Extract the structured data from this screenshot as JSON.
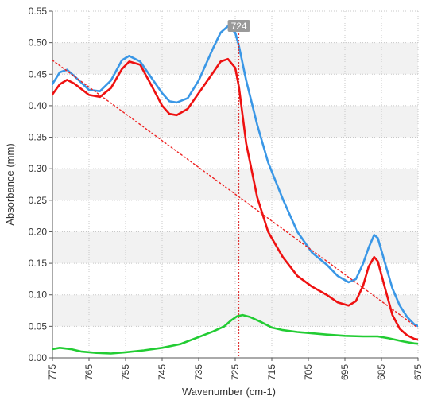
{
  "chart_data": {
    "type": "line",
    "title": "",
    "xlabel": "Wavenumber (cm-1)",
    "ylabel": "Absorbance (mm)",
    "x_axis": {
      "reversed": true,
      "range": [
        775,
        675
      ],
      "ticks": [
        "775",
        "765",
        "755",
        "745",
        "735",
        "725",
        "715",
        "705",
        "695",
        "685",
        "675"
      ]
    },
    "y_axis": {
      "range": [
        0.0,
        0.55
      ],
      "ticks": [
        "0.00",
        "0.05",
        "0.10",
        "0.15",
        "0.20",
        "0.25",
        "0.30",
        "0.35",
        "0.40",
        "0.45",
        "0.50",
        "0.55"
      ]
    },
    "grid": true,
    "banded_background": true,
    "cursor": {
      "x": 724,
      "label": "724"
    },
    "colors": {
      "blue": "#3a97e6",
      "red": "#ee1111",
      "green": "#22cc33",
      "trend": "#ee2222",
      "cursor": "#dd2222",
      "band": "#f2f2f2",
      "grid": "#c8c8c8"
    },
    "series": [
      {
        "color": "#3a97e6",
        "points": [
          [
            776,
            0.425
          ],
          [
            773,
            0.453
          ],
          [
            771,
            0.457
          ],
          [
            769,
            0.447
          ],
          [
            765,
            0.425
          ],
          [
            762,
            0.423
          ],
          [
            759,
            0.44
          ],
          [
            756,
            0.472
          ],
          [
            754,
            0.479
          ],
          [
            751,
            0.47
          ],
          [
            748,
            0.445
          ],
          [
            745,
            0.42
          ],
          [
            743,
            0.407
          ],
          [
            741,
            0.405
          ],
          [
            738,
            0.412
          ],
          [
            735,
            0.44
          ],
          [
            731,
            0.492
          ],
          [
            729,
            0.516
          ],
          [
            727,
            0.526
          ],
          [
            725,
            0.516
          ],
          [
            724,
            0.495
          ],
          [
            722,
            0.44
          ],
          [
            719,
            0.37
          ],
          [
            716,
            0.31
          ],
          [
            712,
            0.252
          ],
          [
            708,
            0.2
          ],
          [
            704,
            0.167
          ],
          [
            700,
            0.148
          ],
          [
            697,
            0.13
          ],
          [
            694,
            0.12
          ],
          [
            692,
            0.125
          ],
          [
            690,
            0.15
          ],
          [
            688.5,
            0.175
          ],
          [
            687,
            0.195
          ],
          [
            686,
            0.19
          ],
          [
            684,
            0.15
          ],
          [
            682,
            0.11
          ],
          [
            680,
            0.083
          ],
          [
            678,
            0.065
          ],
          [
            676,
            0.053
          ],
          [
            674,
            0.048
          ]
        ]
      },
      {
        "color": "#ee1111",
        "points": [
          [
            776,
            0.41
          ],
          [
            773,
            0.434
          ],
          [
            771,
            0.441
          ],
          [
            769,
            0.435
          ],
          [
            765,
            0.417
          ],
          [
            762,
            0.414
          ],
          [
            759,
            0.428
          ],
          [
            756,
            0.458
          ],
          [
            754,
            0.47
          ],
          [
            751,
            0.465
          ],
          [
            748,
            0.433
          ],
          [
            745,
            0.4
          ],
          [
            743,
            0.387
          ],
          [
            741,
            0.385
          ],
          [
            738,
            0.395
          ],
          [
            735,
            0.42
          ],
          [
            731,
            0.453
          ],
          [
            729,
            0.47
          ],
          [
            727,
            0.474
          ],
          [
            725,
            0.46
          ],
          [
            724,
            0.43
          ],
          [
            722,
            0.34
          ],
          [
            719,
            0.255
          ],
          [
            716,
            0.2
          ],
          [
            712,
            0.16
          ],
          [
            708,
            0.13
          ],
          [
            704,
            0.113
          ],
          [
            700,
            0.1
          ],
          [
            697,
            0.088
          ],
          [
            694,
            0.083
          ],
          [
            692,
            0.09
          ],
          [
            690,
            0.115
          ],
          [
            688.5,
            0.145
          ],
          [
            687,
            0.16
          ],
          [
            686,
            0.153
          ],
          [
            684,
            0.11
          ],
          [
            682,
            0.068
          ],
          [
            680,
            0.046
          ],
          [
            678,
            0.036
          ],
          [
            676,
            0.03
          ],
          [
            674,
            0.028
          ]
        ]
      },
      {
        "color": "#22cc33",
        "points": [
          [
            776,
            0.013
          ],
          [
            773,
            0.016
          ],
          [
            770,
            0.014
          ],
          [
            767,
            0.01
          ],
          [
            763,
            0.008
          ],
          [
            759,
            0.007
          ],
          [
            755,
            0.009
          ],
          [
            750,
            0.012
          ],
          [
            745,
            0.016
          ],
          [
            740,
            0.022
          ],
          [
            735,
            0.033
          ],
          [
            731,
            0.042
          ],
          [
            728,
            0.05
          ],
          [
            726,
            0.06
          ],
          [
            724.5,
            0.066
          ],
          [
            723,
            0.068
          ],
          [
            721,
            0.065
          ],
          [
            718,
            0.057
          ],
          [
            715,
            0.048
          ],
          [
            712,
            0.044
          ],
          [
            708,
            0.041
          ],
          [
            704,
            0.039
          ],
          [
            700,
            0.037
          ],
          [
            695,
            0.035
          ],
          [
            690,
            0.034
          ],
          [
            686,
            0.034
          ],
          [
            683,
            0.031
          ],
          [
            679,
            0.026
          ],
          [
            676,
            0.023
          ],
          [
            674,
            0.022
          ]
        ]
      },
      {
        "color": "#ee2222",
        "dashed": true,
        "points": [
          [
            775,
            0.472
          ],
          [
            674,
            0.043
          ]
        ]
      }
    ]
  }
}
